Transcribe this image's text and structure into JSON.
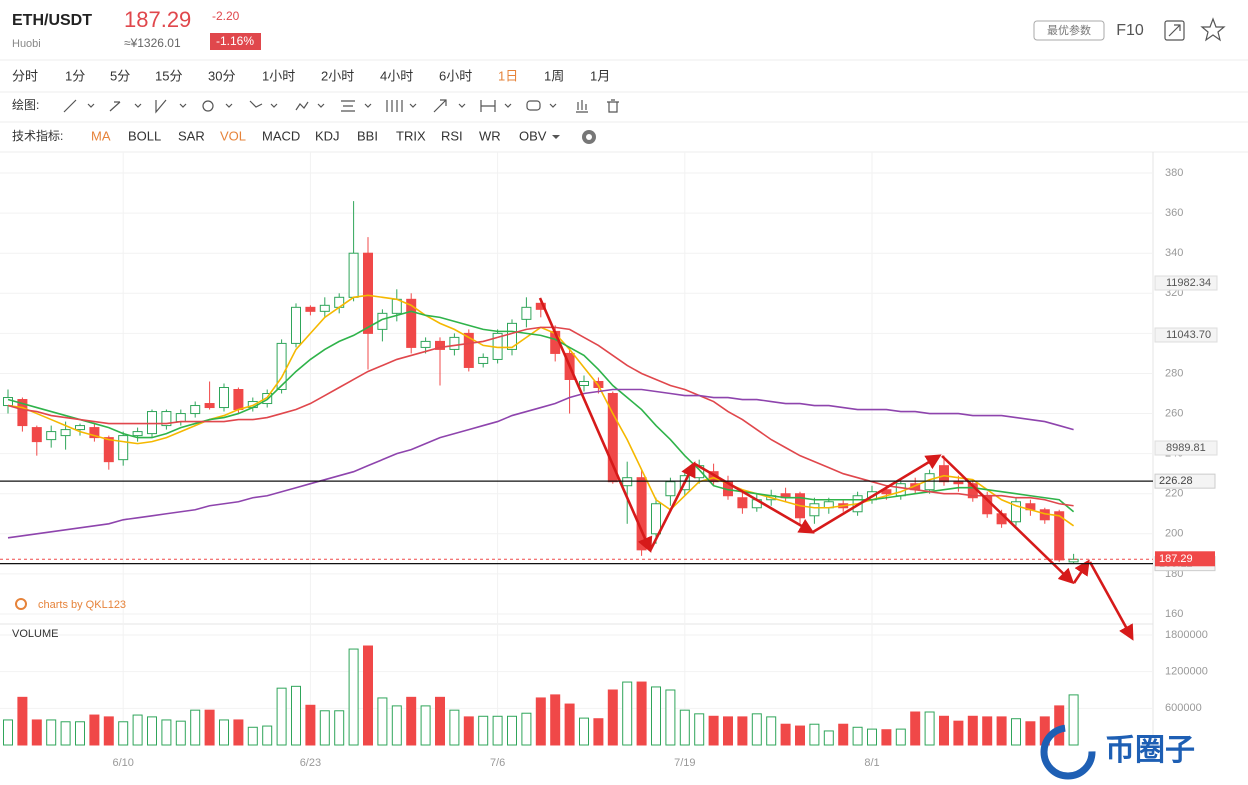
{
  "header": {
    "symbol": "ETH/USDT",
    "exchange": "Huobi",
    "price": "187.29",
    "price_cny": "≈¥1326.01",
    "change": "-2.20",
    "change_pct": "-1.16%",
    "buttons": [
      "最优参数",
      "F10"
    ]
  },
  "timeframes": [
    {
      "label": "分时"
    },
    {
      "label": "1分"
    },
    {
      "label": "5分"
    },
    {
      "label": "15分"
    },
    {
      "label": "30分"
    },
    {
      "label": "1小时"
    },
    {
      "label": "2小时"
    },
    {
      "label": "4小时"
    },
    {
      "label": "6小时"
    },
    {
      "label": "1日",
      "active": true
    },
    {
      "label": "1周"
    },
    {
      "label": "1月"
    }
  ],
  "toolbar": {
    "drawing_label": "绘图:",
    "indicator_label": "技术指标:"
  },
  "indicators": [
    {
      "label": "MA",
      "active": true
    },
    {
      "label": "BOLL"
    },
    {
      "label": "SAR"
    },
    {
      "label": "VOL",
      "active": true
    },
    {
      "label": "MACD"
    },
    {
      "label": "KDJ"
    },
    {
      "label": "BBI"
    },
    {
      "label": "TRIX"
    },
    {
      "label": "RSI"
    },
    {
      "label": "WR"
    },
    {
      "label": "OBV"
    }
  ],
  "site_watermark": "币圈子",
  "chart_data": {
    "type": "candlestick",
    "watermark": "charts by QKL123",
    "categories": [
      null,
      null,
      null,
      null,
      null,
      null,
      null,
      null,
      "6/10",
      null,
      null,
      null,
      null,
      null,
      null,
      null,
      null,
      null,
      null,
      null,
      null,
      "6/23",
      null,
      null,
      null,
      null,
      null,
      null,
      null,
      null,
      null,
      null,
      null,
      null,
      "7/6",
      null,
      null,
      null,
      null,
      null,
      null,
      null,
      null,
      null,
      null,
      null,
      null,
      "7/19",
      null,
      null,
      null,
      null,
      null,
      null,
      null,
      null,
      null,
      null,
      null,
      null,
      "8/1",
      null,
      null,
      null,
      null,
      null,
      null,
      null,
      null,
      null,
      null,
      null,
      null,
      null,
      null
    ],
    "open": [
      264,
      267,
      253,
      247,
      249,
      252,
      253,
      248,
      237,
      249,
      250,
      254,
      256,
      260,
      265,
      263,
      272,
      263,
      265,
      272,
      295,
      313,
      311,
      313,
      318,
      340,
      302,
      310,
      317,
      293,
      296,
      292,
      300,
      285,
      287,
      292,
      307,
      315,
      301,
      290,
      274,
      276,
      270,
      224,
      228,
      200,
      219,
      222,
      228,
      231,
      226,
      218,
      213,
      217,
      220,
      220,
      209,
      213,
      215,
      211,
      217,
      222,
      219,
      225,
      222,
      234,
      226,
      225,
      219,
      210,
      206,
      215,
      212,
      211,
      186
    ],
    "high": [
      272,
      268,
      254,
      254,
      256,
      255,
      255,
      249,
      251,
      253,
      262,
      262,
      262,
      266,
      276,
      275,
      273,
      268,
      272,
      297,
      315,
      314,
      318,
      320,
      366,
      348,
      312,
      322,
      320,
      298,
      298,
      300,
      302,
      290,
      302,
      307,
      318,
      317,
      304,
      292,
      279,
      278,
      271,
      236,
      232,
      218,
      228,
      232,
      237,
      235,
      229,
      221,
      220,
      222,
      223,
      221,
      218,
      218,
      217,
      221,
      224,
      223,
      226,
      228,
      232,
      239,
      229,
      227,
      221,
      212,
      218,
      217,
      213,
      212,
      190
    ],
    "low": [
      260,
      251,
      239,
      243,
      242,
      249,
      246,
      232,
      234,
      246,
      248,
      252,
      254,
      258,
      262,
      261,
      260,
      261,
      263,
      270,
      293,
      309,
      308,
      310,
      316,
      282,
      296,
      306,
      290,
      290,
      274,
      289,
      281,
      283,
      285,
      289,
      303,
      308,
      286,
      260,
      271,
      270,
      225,
      205,
      189,
      195,
      214,
      219,
      225,
      224,
      217,
      210,
      211,
      214,
      216,
      205,
      205,
      210,
      211,
      209,
      215,
      217,
      217,
      220,
      220,
      224,
      221,
      216,
      208,
      203,
      204,
      209,
      205,
      186,
      185
    ],
    "close": [
      268,
      254,
      246,
      251,
      252,
      254,
      248,
      236,
      249,
      251,
      261,
      261,
      260,
      264,
      263,
      273,
      262,
      266,
      270,
      295,
      313,
      311,
      314,
      318,
      340,
      300,
      310,
      317,
      293,
      296,
      292,
      298,
      283,
      288,
      300,
      305,
      313,
      312,
      290,
      277,
      276,
      273,
      226,
      228,
      192,
      215,
      226,
      229,
      234,
      226,
      219,
      213,
      217,
      219,
      218,
      208,
      215,
      216,
      213,
      219,
      221,
      220,
      225,
      222,
      230,
      226,
      225,
      218,
      210,
      205,
      216,
      212,
      207,
      187,
      187.29
    ],
    "up_color": "#2fa55a",
    "down_color": "#f04848",
    "series": [
      {
        "color": "#f5b800",
        "values": [
          264,
          263,
          260,
          257,
          254,
          251,
          249,
          247,
          246,
          245,
          246,
          248,
          251,
          254,
          257,
          259,
          262,
          264,
          268,
          278,
          292,
          300,
          308,
          313,
          318,
          319,
          318,
          317,
          314,
          309,
          305,
          302,
          298,
          294,
          293,
          293,
          298,
          303,
          300,
          292,
          283,
          274,
          260,
          247,
          232,
          217,
          212,
          219,
          226,
          228,
          225,
          222,
          220,
          218,
          216,
          214,
          213,
          213,
          214,
          215,
          217,
          219,
          221,
          224,
          227,
          229,
          228,
          227,
          222,
          217,
          214,
          212,
          210,
          209,
          204
        ]
      },
      {
        "color": "#2fb34a",
        "values": [
          267,
          265,
          263,
          261,
          259,
          257,
          255,
          253,
          250,
          248,
          248,
          250,
          253,
          255,
          257,
          258,
          260,
          263,
          267,
          274,
          281,
          287,
          292,
          296,
          299,
          303,
          307,
          309,
          311,
          309,
          308,
          306,
          304,
          302,
          301,
          301,
          300,
          299,
          297,
          293,
          289,
          282,
          274,
          268,
          262,
          254,
          247,
          239,
          232,
          224,
          222,
          221,
          220,
          219,
          218,
          218,
          217,
          217,
          217,
          217,
          217,
          218,
          219,
          220,
          221,
          222,
          223,
          223,
          222,
          221,
          220,
          219,
          218,
          217,
          211
        ]
      },
      {
        "color": "#e0474c",
        "values": [
          264,
          262,
          261,
          259,
          258,
          257,
          256,
          255,
          255,
          255,
          255,
          255,
          256,
          256,
          256,
          256,
          257,
          257,
          258,
          260,
          262,
          265,
          269,
          273,
          277,
          281,
          284,
          287,
          289,
          291,
          293,
          294,
          295,
          296,
          298,
          300,
          302,
          303,
          303,
          302,
          298,
          294,
          289,
          284,
          280,
          277,
          274,
          272,
          269,
          266,
          261,
          257,
          252,
          247,
          243,
          239,
          236,
          233,
          230,
          228,
          226,
          224,
          223,
          222,
          221,
          220,
          220,
          219,
          219,
          219,
          218,
          218,
          217,
          215,
          214
        ]
      },
      {
        "color": "#8e44ad",
        "values": [
          198,
          199,
          200,
          201,
          202,
          203,
          204,
          205,
          207,
          208,
          209,
          210,
          211,
          212,
          214,
          215,
          216,
          218,
          219,
          221,
          223,
          225,
          227,
          229,
          231,
          234,
          237,
          240,
          242,
          245,
          248,
          250,
          252,
          254,
          256,
          259,
          261,
          263,
          265,
          268,
          270,
          271,
          272,
          272,
          272,
          271,
          270,
          269,
          269,
          268,
          268,
          267,
          267,
          266,
          265,
          265,
          264,
          264,
          263,
          262,
          262,
          262,
          261,
          261,
          260,
          260,
          260,
          259,
          259,
          259,
          258,
          257,
          256,
          254,
          252
        ]
      }
    ],
    "ylim": [
      156,
      390.5
    ],
    "yticks": [
      160,
      180,
      200,
      220,
      240,
      260,
      280,
      300,
      320,
      340,
      360,
      380
    ],
    "grid": true,
    "hlines": [
      226.28,
      185.12
    ],
    "price_line": 187.29,
    "price_labels": [
      "11982.34",
      "11043.70",
      "8989.81"
    ],
    "volume": {
      "title": "VOLUME",
      "values": [
        410000,
        780000,
        410000,
        410000,
        380000,
        380000,
        490000,
        460000,
        380000,
        490000,
        460000,
        410000,
        390000,
        570000,
        570000,
        410000,
        410000,
        290000,
        310000,
        930000,
        960000,
        650000,
        560000,
        560000,
        1570000,
        1620000,
        770000,
        640000,
        780000,
        640000,
        780000,
        570000,
        460000,
        470000,
        470000,
        470000,
        520000,
        770000,
        820000,
        670000,
        440000,
        430000,
        900000,
        1030000,
        1030000,
        950000,
        900000,
        570000,
        510000,
        470000,
        460000,
        460000,
        510000,
        460000,
        340000,
        310000,
        340000,
        230000,
        340000,
        290000,
        260000,
        250000,
        260000,
        540000,
        540000,
        470000,
        390000,
        470000,
        460000,
        460000,
        430000,
        380000,
        460000,
        640000,
        820000
      ],
      "ylim": [
        0,
        1980000
      ],
      "yticks": [
        600000,
        1200000,
        1800000
      ]
    }
  }
}
